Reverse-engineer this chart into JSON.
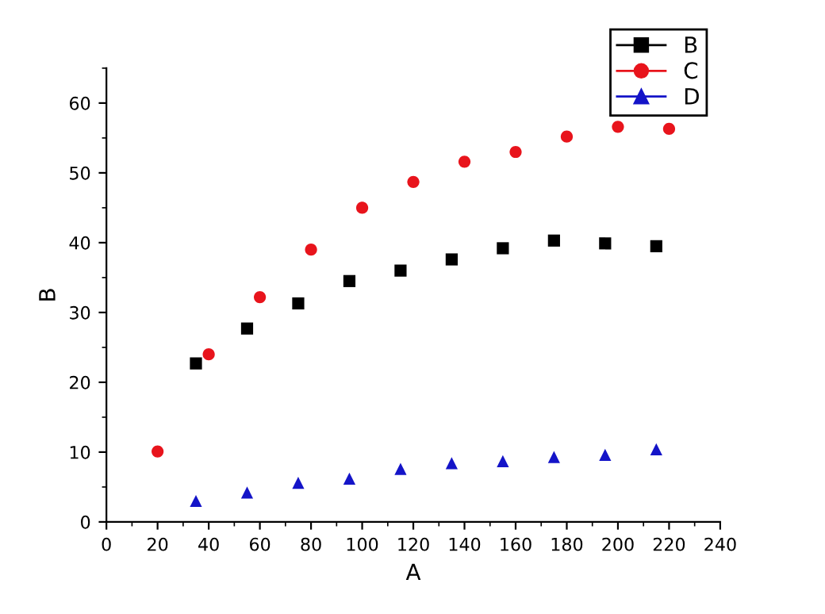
{
  "chart_data": {
    "type": "scatter",
    "xlabel": "A",
    "ylabel": "B",
    "xlim": [
      0,
      240
    ],
    "xticks": [
      0,
      20,
      40,
      60,
      80,
      100,
      120,
      140,
      160,
      180,
      200,
      220,
      240
    ],
    "ylim": [
      0,
      65
    ],
    "yticks": [
      0,
      10,
      20,
      30,
      40,
      50,
      60
    ],
    "grid": false,
    "legend": "top right",
    "series": [
      {
        "name": "B",
        "color": "#000000",
        "marker": "square",
        "x": [
          35,
          55,
          75,
          95,
          115,
          135,
          155,
          175,
          195,
          215
        ],
        "values": [
          22.7,
          27.7,
          31.3,
          34.5,
          36,
          37.6,
          39.2,
          40.3,
          39.9,
          39.5
        ]
      },
      {
        "name": "C",
        "color": "#e8141c",
        "marker": "circle",
        "x": [
          20,
          40,
          60,
          80,
          100,
          120,
          140,
          160,
          180,
          200,
          220
        ],
        "values": [
          10.1,
          24,
          32.2,
          39,
          45,
          48.7,
          51.6,
          53,
          55.2,
          56.6,
          56.3
        ]
      },
      {
        "name": "D",
        "color": "#1414c8",
        "marker": "triangle",
        "x": [
          35,
          55,
          75,
          95,
          115,
          135,
          155,
          175,
          195,
          215
        ],
        "values": [
          3,
          4.2,
          5.6,
          6.2,
          7.6,
          8.4,
          8.7,
          9.3,
          9.6,
          10.4
        ]
      }
    ]
  }
}
